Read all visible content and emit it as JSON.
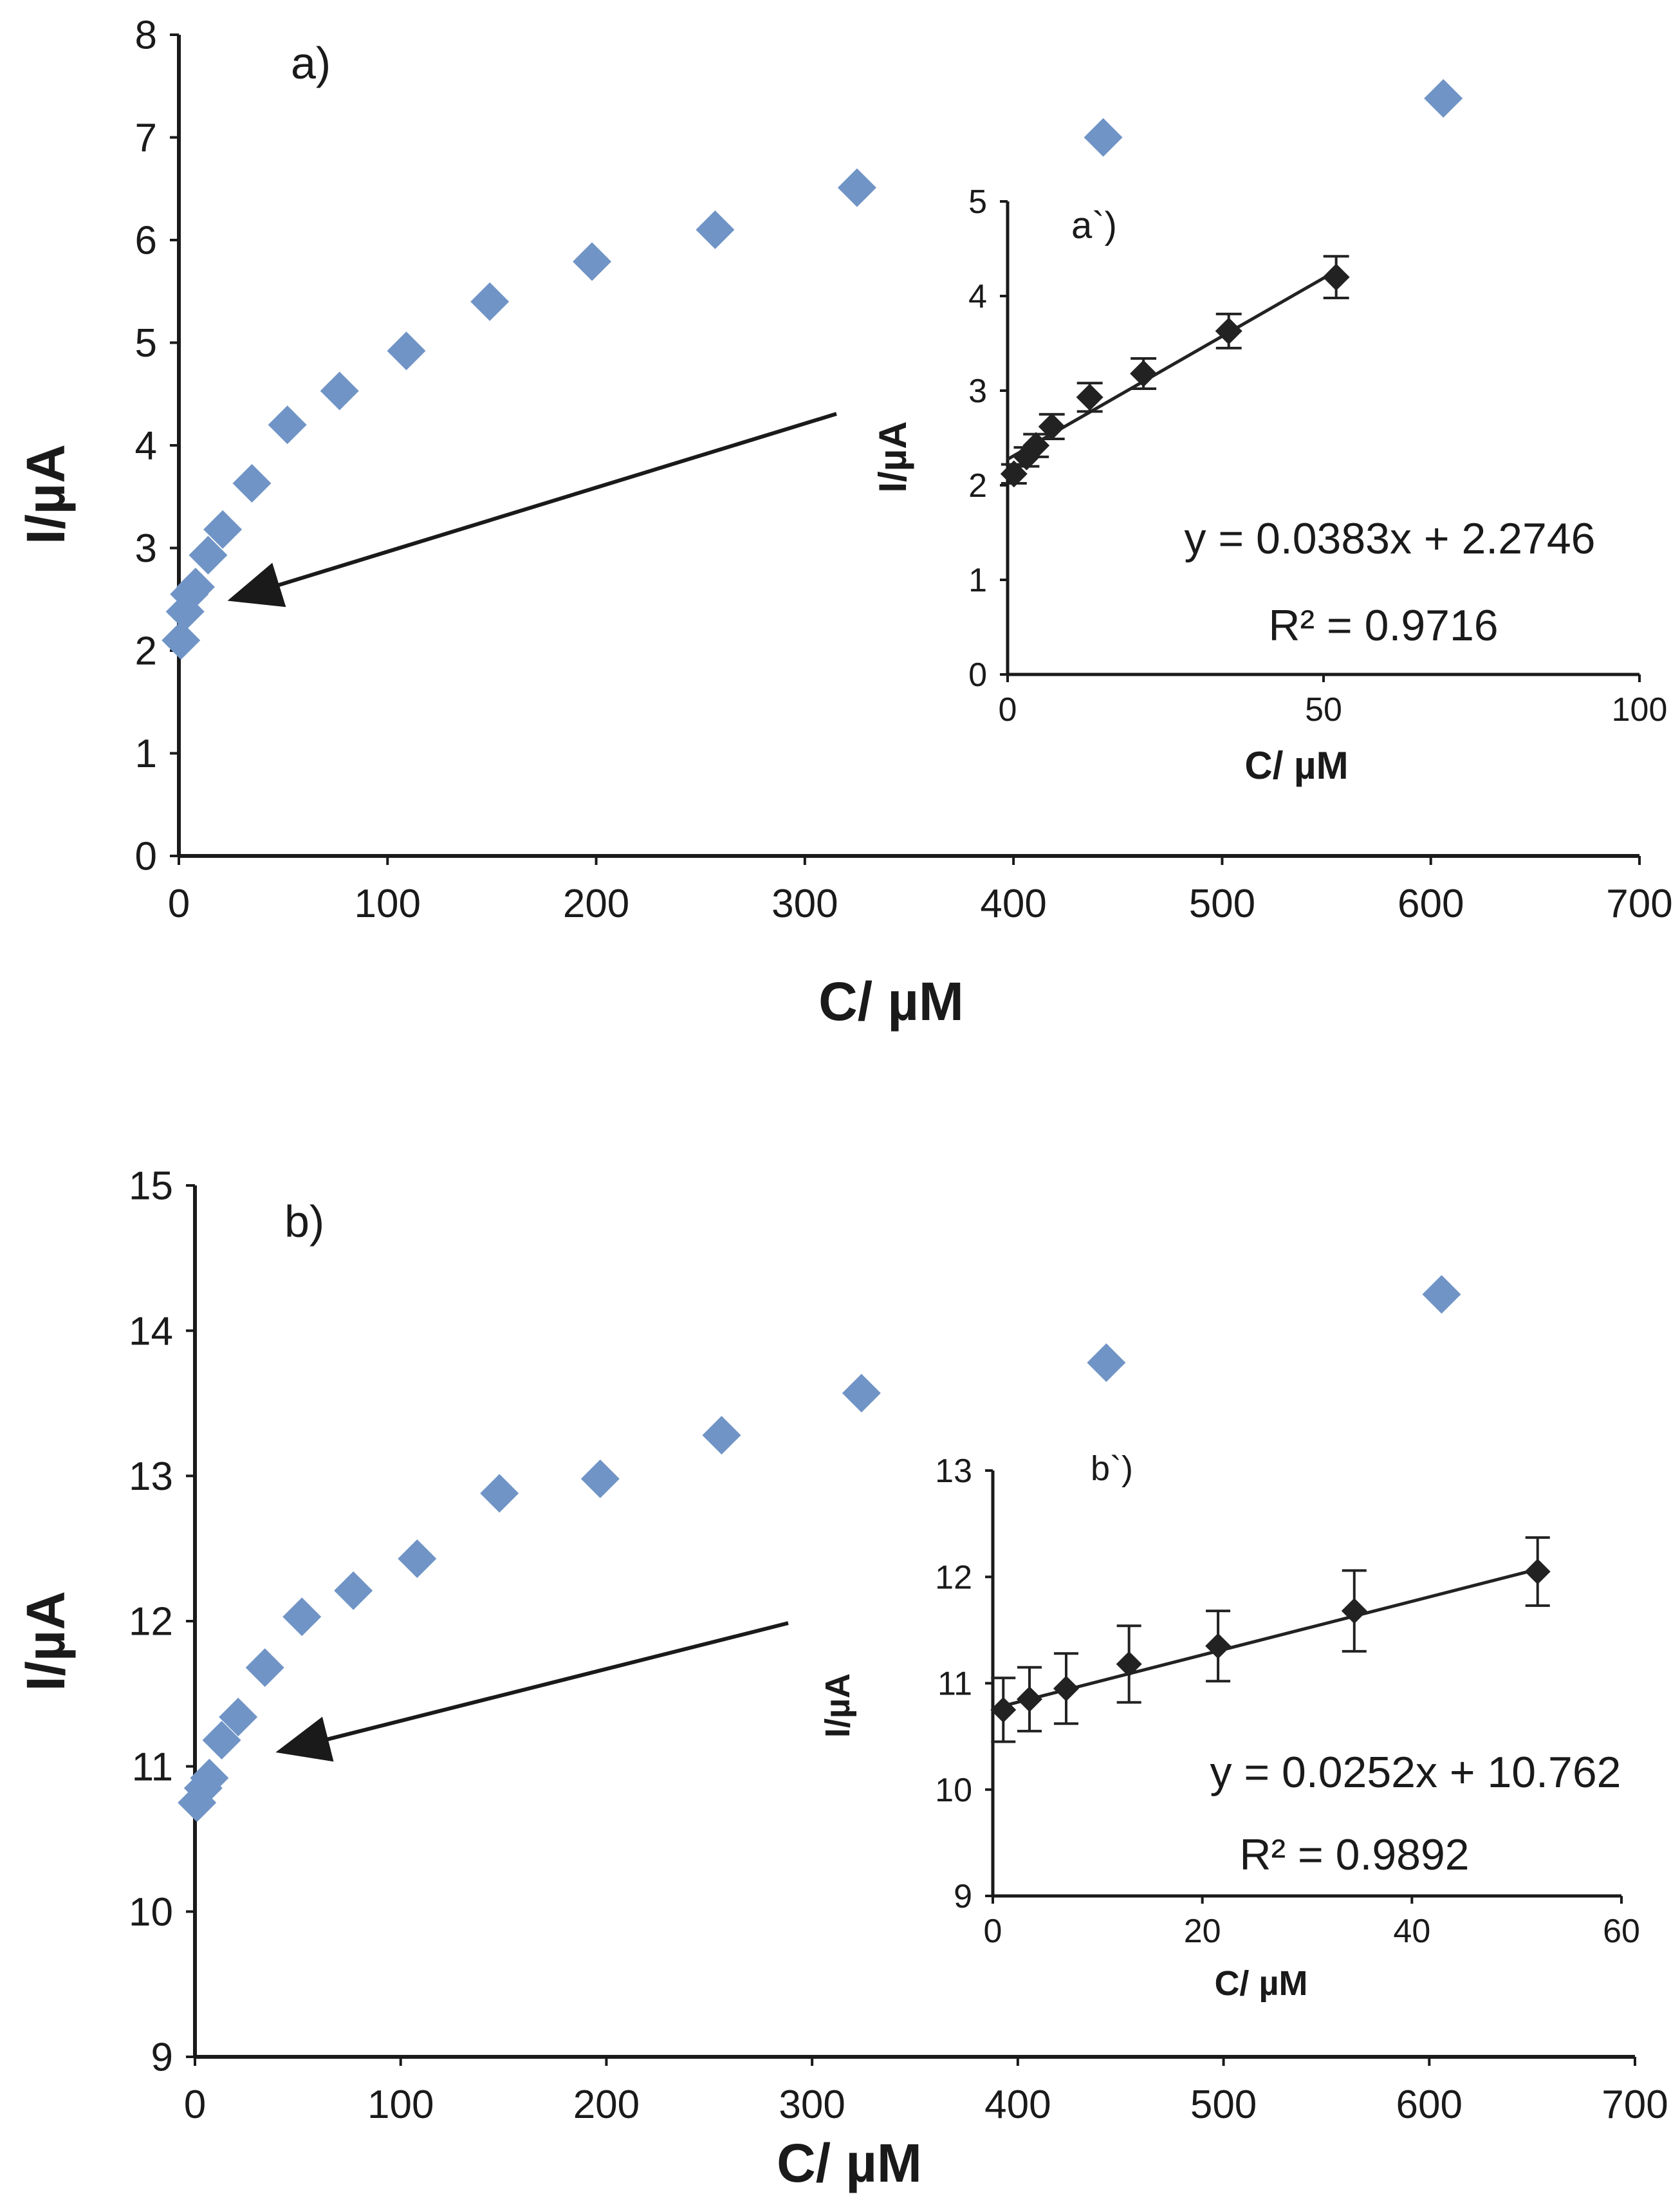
{
  "colors": {
    "main_marker": "#7094C6",
    "inset_marker": "#222222",
    "axis": "#1a1a1a",
    "text": "#1a1a1a"
  },
  "chart_data": [
    {
      "type": "scatter",
      "panel_label": "a)",
      "xlabel": "C/ µM",
      "ylabel": "I/µA",
      "xlim": [
        0,
        700
      ],
      "ylim": [
        0,
        8
      ],
      "x_ticks": [
        "0",
        "100",
        "200",
        "300",
        "400",
        "500",
        "600",
        "700"
      ],
      "y_ticks": [
        "0",
        "1",
        "2",
        "3",
        "4",
        "5",
        "6",
        "7",
        "8"
      ],
      "grid": false,
      "legend": "none",
      "annotation": "arrow pointing from inset to low-concentration region",
      "points": [
        {
          "x": 1,
          "y": 2.1
        },
        {
          "x": 3,
          "y": 2.38
        },
        {
          "x": 5,
          "y": 2.55
        },
        {
          "x": 8,
          "y": 2.62
        },
        {
          "x": 14,
          "y": 2.93
        },
        {
          "x": 21,
          "y": 3.18
        },
        {
          "x": 35,
          "y": 3.63
        },
        {
          "x": 52,
          "y": 4.2
        },
        {
          "x": 77,
          "y": 4.53
        },
        {
          "x": 109,
          "y": 4.92
        },
        {
          "x": 149,
          "y": 5.4
        },
        {
          "x": 198,
          "y": 5.79
        },
        {
          "x": 257,
          "y": 6.1
        },
        {
          "x": 325,
          "y": 6.51
        },
        {
          "x": 443,
          "y": 7.0
        },
        {
          "x": 606,
          "y": 7.38
        }
      ],
      "inset": {
        "type": "scatter",
        "panel_label": "a`)",
        "xlabel": "C/ µM",
        "ylabel": "I/µA",
        "xlim": [
          0,
          100
        ],
        "ylim": [
          0,
          5
        ],
        "x_ticks": [
          "0",
          "50",
          "100"
        ],
        "y_ticks": [
          "0",
          "1",
          "2",
          "3",
          "4",
          "5"
        ],
        "equation": "y = 0.0383x + 2.2746",
        "r2_label": "R² = 0.9716",
        "fit": {
          "slope": 0.0383,
          "intercept": 2.2746,
          "x_range": [
            0,
            52
          ]
        },
        "points": [
          {
            "x": 1,
            "y": 2.12,
            "err": 0.1
          },
          {
            "x": 3,
            "y": 2.3,
            "err": 0.1
          },
          {
            "x": 4.5,
            "y": 2.42,
            "err": 0.12
          },
          {
            "x": 7,
            "y": 2.62,
            "err": 0.13
          },
          {
            "x": 13,
            "y": 2.93,
            "err": 0.15
          },
          {
            "x": 21.5,
            "y": 3.18,
            "err": 0.16
          },
          {
            "x": 35,
            "y": 3.63,
            "err": 0.18
          },
          {
            "x": 52,
            "y": 4.2,
            "err": 0.22
          }
        ]
      }
    },
    {
      "type": "scatter",
      "panel_label": "b)",
      "xlabel": "C/ µM",
      "ylabel": "I/µA",
      "xlim": [
        0,
        700
      ],
      "ylim": [
        9,
        15
      ],
      "x_ticks": [
        "0",
        "100",
        "200",
        "300",
        "400",
        "500",
        "600",
        "700"
      ],
      "y_ticks": [
        "9",
        "10",
        "11",
        "12",
        "13",
        "14",
        "15"
      ],
      "grid": false,
      "legend": "none",
      "annotation": "arrow pointing from inset to low-concentration region",
      "points": [
        {
          "x": 1,
          "y": 10.75
        },
        {
          "x": 4,
          "y": 10.85
        },
        {
          "x": 7,
          "y": 10.92
        },
        {
          "x": 13,
          "y": 11.18
        },
        {
          "x": 21,
          "y": 11.34
        },
        {
          "x": 34,
          "y": 11.68
        },
        {
          "x": 52,
          "y": 12.03
        },
        {
          "x": 77,
          "y": 12.21
        },
        {
          "x": 108,
          "y": 12.43
        },
        {
          "x": 148,
          "y": 12.88
        },
        {
          "x": 197,
          "y": 12.98
        },
        {
          "x": 256,
          "y": 13.28
        },
        {
          "x": 324,
          "y": 13.57
        },
        {
          "x": 443,
          "y": 13.78
        },
        {
          "x": 606,
          "y": 14.25
        }
      ],
      "inset": {
        "type": "scatter",
        "panel_label": "b`)",
        "xlabel": "C/ µM",
        "ylabel": "I/µA",
        "xlim": [
          0,
          60
        ],
        "ylim": [
          9,
          13
        ],
        "x_ticks": [
          "0",
          "20",
          "40",
          "60"
        ],
        "y_ticks": [
          "9",
          "10",
          "11",
          "12",
          "13"
        ],
        "equation": "y = 0.0252x + 10.762",
        "r2_label": "R² = 0.9892",
        "fit": {
          "slope": 0.0252,
          "intercept": 10.762,
          "x_range": [
            0.5,
            52
          ]
        },
        "points": [
          {
            "x": 1,
            "y": 10.75,
            "err": 0.3
          },
          {
            "x": 3.5,
            "y": 10.85,
            "err": 0.3
          },
          {
            "x": 7,
            "y": 10.95,
            "err": 0.33
          },
          {
            "x": 13,
            "y": 11.18,
            "err": 0.36
          },
          {
            "x": 21.5,
            "y": 11.35,
            "err": 0.33
          },
          {
            "x": 34.5,
            "y": 11.68,
            "err": 0.38
          },
          {
            "x": 52,
            "y": 12.05,
            "err": 0.32
          }
        ]
      }
    }
  ]
}
